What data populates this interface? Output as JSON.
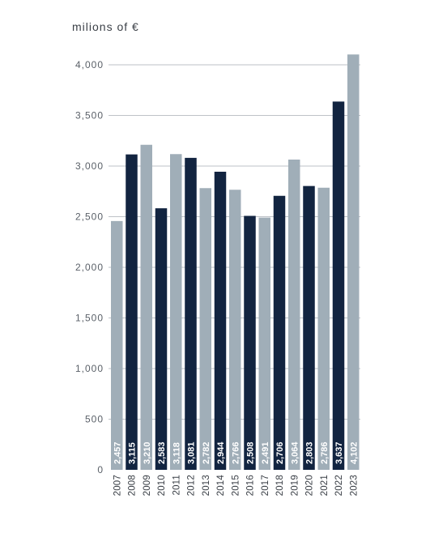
{
  "chart_data": {
    "type": "bar",
    "unit_label": "milions of €",
    "categories": [
      "2007",
      "2008",
      "2009",
      "2010",
      "2011",
      "2012",
      "2013",
      "2014",
      "2015",
      "2016",
      "2017",
      "2018",
      "2019",
      "2020",
      "2021",
      "2022",
      "2023"
    ],
    "values": [
      2457,
      3115,
      3210,
      2583,
      3118,
      3081,
      2782,
      2944,
      2766,
      2508,
      2491,
      2706,
      3064,
      2803,
      2786,
      3637,
      4102
    ],
    "data_labels": [
      "2,457",
      "3,115",
      "3,210",
      "2,583",
      "3,118",
      "3,081",
      "2,782",
      "2,944",
      "2,766",
      "2,508",
      "2,491",
      "2,706",
      "3,064",
      "2,803",
      "2,786",
      "3,637",
      "4,102"
    ],
    "bar_tones": [
      "light",
      "dark",
      "light",
      "dark",
      "light",
      "dark",
      "light",
      "dark",
      "light",
      "dark",
      "light",
      "dark",
      "light",
      "dark",
      "light",
      "dark",
      "light"
    ],
    "y_ticks": [
      0,
      500,
      1000,
      1500,
      2000,
      2500,
      3000,
      3500,
      4000
    ],
    "y_tick_labels": [
      "0",
      "500",
      "1,000",
      "1,500",
      "2,000",
      "2,500",
      "3,000",
      "3,500",
      "4,000"
    ],
    "ylim": [
      0,
      4000
    ],
    "grid": true,
    "colors": {
      "dark": "#122440",
      "light": "#a0aeb8",
      "grid": "#a9aeb4"
    }
  }
}
